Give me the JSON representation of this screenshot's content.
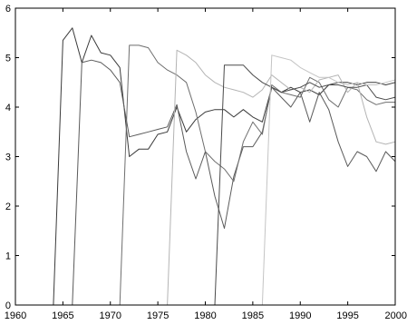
{
  "chart_data": {
    "type": "line",
    "title": "",
    "xlabel": "",
    "ylabel": "",
    "xlim": [
      1960,
      2000
    ],
    "ylim": [
      0,
      6
    ],
    "grid": false,
    "x_ticks": [
      1960,
      1965,
      1970,
      1975,
      1980,
      1985,
      1990,
      1995,
      2000
    ],
    "y_ticks": [
      0,
      1,
      2,
      3,
      4,
      5,
      6
    ],
    "x_tick_labels": [
      "1960",
      "1965",
      "1970",
      "1975",
      "1980",
      "1985",
      "1990",
      "1995",
      "2000"
    ],
    "y_tick_labels": [
      "0",
      "1",
      "2",
      "3",
      "4",
      "5",
      "6"
    ],
    "series": [
      {
        "color": "#3a3a3a",
        "x": [
          1964,
          1965,
          1966,
          1967,
          1968,
          1969,
          1970,
          1971,
          1972,
          1973,
          1974,
          1975,
          1976,
          1977,
          1978,
          1979,
          1980,
          1981,
          1982,
          1983,
          1984,
          1985,
          1986,
          1987,
          1988,
          1989,
          1990,
          1991,
          1992,
          1993,
          1994,
          1995,
          1996,
          1997,
          1998,
          1999,
          2000
        ],
        "y": [
          0,
          5.35,
          5.6,
          4.9,
          5.45,
          5.1,
          5.05,
          4.8,
          3.0,
          3.15,
          3.15,
          3.45,
          3.5,
          4.0,
          3.5,
          3.75,
          3.9,
          3.95,
          3.95,
          3.8,
          3.95,
          3.8,
          3.7,
          4.4,
          4.3,
          4.4,
          4.3,
          4.35,
          4.25,
          4.45,
          4.5,
          4.5,
          4.45,
          4.5,
          4.5,
          4.45,
          4.5
        ]
      },
      {
        "color": "#5a5a5a",
        "x": [
          1966,
          1967,
          1968,
          1969,
          1970,
          1971,
          1972,
          1973,
          1974,
          1975,
          1976,
          1977,
          1978,
          1979,
          1980,
          1981,
          1982,
          1983,
          1984,
          1985,
          1986,
          1987,
          1988,
          1989,
          1990,
          1991,
          1992,
          1993,
          1994,
          1995,
          1996,
          1997,
          1998,
          1999,
          2000
        ],
        "y": [
          0,
          4.9,
          4.95,
          4.9,
          4.75,
          4.5,
          3.4,
          3.45,
          3.5,
          3.55,
          3.6,
          4.05,
          3.1,
          2.55,
          3.1,
          2.2,
          1.55,
          2.6,
          3.2,
          3.2,
          3.5,
          4.4,
          4.2,
          4.0,
          4.3,
          3.7,
          4.3,
          3.95,
          3.3,
          2.8,
          3.1,
          3.0,
          2.7,
          3.1,
          2.9
        ]
      },
      {
        "color": "#6e6e6e",
        "x": [
          1971,
          1972,
          1973,
          1974,
          1975,
          1976,
          1977,
          1978,
          1979,
          1980,
          1981,
          1982,
          1983,
          1984,
          1985,
          1986,
          1987,
          1988,
          1989,
          1990,
          1991,
          1992,
          1993,
          1994,
          1995,
          1996,
          1997,
          1998,
          1999,
          2000
        ],
        "y": [
          0,
          5.25,
          5.25,
          5.2,
          4.9,
          4.75,
          4.65,
          4.5,
          3.9,
          3.1,
          2.9,
          2.75,
          2.5,
          3.3,
          3.7,
          3.45,
          4.45,
          4.3,
          4.25,
          4.2,
          4.6,
          4.5,
          4.15,
          4.0,
          4.4,
          4.35,
          4.15,
          4.05,
          4.1,
          4.1
        ]
      },
      {
        "color": "#b4b4b4",
        "x": [
          1976,
          1977,
          1978,
          1979,
          1980,
          1981,
          1982,
          1983,
          1984,
          1985,
          1986,
          1987,
          1988,
          1989,
          1990,
          1991,
          1992,
          1993,
          1994,
          1995,
          1996,
          1997,
          1998,
          1999,
          2000
        ],
        "y": [
          0,
          5.15,
          5.05,
          4.9,
          4.65,
          4.5,
          4.4,
          4.35,
          4.3,
          4.2,
          4.35,
          4.65,
          4.5,
          4.35,
          4.4,
          4.3,
          4.55,
          4.6,
          4.65,
          4.3,
          4.5,
          3.8,
          3.3,
          3.25,
          3.3
        ]
      },
      {
        "color": "#4a4a4a",
        "x": [
          1981,
          1982,
          1983,
          1984,
          1985,
          1986,
          1987,
          1988,
          1989,
          1990,
          1991,
          1992,
          1993,
          1994,
          1995,
          1996,
          1997,
          1998,
          1999,
          2000
        ],
        "y": [
          0,
          4.85,
          4.85,
          4.85,
          4.65,
          4.5,
          4.4,
          4.3,
          4.35,
          4.4,
          4.5,
          4.4,
          4.45,
          4.45,
          4.4,
          4.4,
          4.45,
          4.2,
          4.15,
          4.2
        ]
      },
      {
        "color": "#c4c4c4",
        "x": [
          1986,
          1987,
          1988,
          1989,
          1990,
          1991,
          1992,
          1993,
          1994,
          1995,
          1996,
          1997,
          1998,
          1999,
          2000
        ],
        "y": [
          0,
          5.05,
          5.0,
          4.95,
          4.8,
          4.7,
          4.6,
          4.6,
          4.5,
          4.45,
          4.5,
          4.45,
          4.45,
          4.5,
          4.55
        ]
      }
    ]
  }
}
